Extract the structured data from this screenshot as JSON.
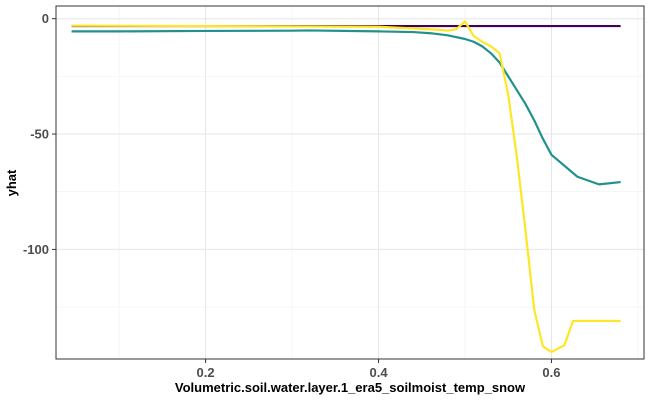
{
  "chart_data": {
    "type": "line",
    "title": "",
    "xlabel": "Volumetric.soil.water.layer.1_era5_soilmoist_temp_snow",
    "ylabel": "yhat",
    "xlim": [
      0.027,
      0.707
    ],
    "ylim": [
      -147.5,
      5.5
    ],
    "x_ticks": [
      0.2,
      0.4,
      0.6
    ],
    "x_tick_labels": [
      "0.2",
      "0.4",
      "0.6"
    ],
    "y_ticks": [
      0,
      -50,
      -100
    ],
    "y_tick_labels": [
      "0",
      "-50",
      "-100"
    ],
    "grid": true,
    "legend": "none",
    "series": [
      {
        "color": "#440154",
        "x": [
          0.045,
          0.68
        ],
        "y": [
          -3.2,
          -3.2
        ]
      },
      {
        "color": "#21918c",
        "x": [
          0.045,
          0.1,
          0.2,
          0.3,
          0.32,
          0.4,
          0.44,
          0.46,
          0.48,
          0.5,
          0.51,
          0.52,
          0.53,
          0.54,
          0.55,
          0.56,
          0.57,
          0.58,
          0.59,
          0.6,
          0.63,
          0.655,
          0.68
        ],
        "y": [
          -5.5,
          -5.5,
          -5.3,
          -5.2,
          -5.1,
          -5.5,
          -5.8,
          -6.3,
          -7.2,
          -8.8,
          -10,
          -12,
          -15,
          -19,
          -25,
          -31,
          -37,
          -44,
          -52,
          -59,
          -68.5,
          -71.8,
          -70.8
        ]
      },
      {
        "color": "#fde725",
        "x": [
          0.045,
          0.2,
          0.4,
          0.47,
          0.48,
          0.49,
          0.5,
          0.51,
          0.52,
          0.53,
          0.54,
          0.55,
          0.56,
          0.57,
          0.58,
          0.59,
          0.6,
          0.615,
          0.625,
          0.65,
          0.68
        ],
        "y": [
          -3,
          -3.2,
          -3.5,
          -4.8,
          -5.2,
          -4.5,
          -1.2,
          -7.5,
          -10,
          -12,
          -15,
          -33,
          -60,
          -92,
          -126,
          -142,
          -144.5,
          -141.5,
          -131,
          -131,
          -131
        ]
      }
    ]
  }
}
